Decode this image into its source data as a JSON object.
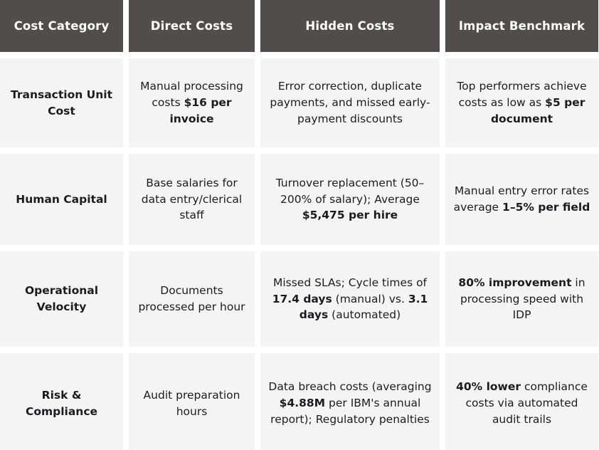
{
  "colors": {
    "header_bg": "#524d4d",
    "header_text": "#ffffff",
    "cell_bg": "#f4f4f4",
    "body_text": "#1c1c1e",
    "page_bg": "#ffffff"
  },
  "table": {
    "columns": [
      "Cost Category",
      "Direct Costs",
      "Hidden Costs",
      "Impact Benchmark"
    ],
    "rows": [
      {
        "category": "Transaction Unit Cost",
        "direct_costs": [
          {
            "t": "Manual processing costs "
          },
          {
            "t": "$16 per invoice",
            "b": true
          }
        ],
        "hidden_costs": [
          {
            "t": "Error correction, duplicate payments, and missed early-payment discounts"
          }
        ],
        "impact_benchmark": [
          {
            "t": "Top performers achieve costs as low as "
          },
          {
            "t": "$5 per document",
            "b": true
          }
        ]
      },
      {
        "category": "Human Capital",
        "direct_costs": [
          {
            "t": "Base salaries for data entry/clerical staff"
          }
        ],
        "hidden_costs": [
          {
            "t": "Turnover replacement (50–200% of salary); Average "
          },
          {
            "t": "$5,475 per hire",
            "b": true
          }
        ],
        "impact_benchmark": [
          {
            "t": "Manual entry error rates average "
          },
          {
            "t": "1–5% per field",
            "b": true
          }
        ]
      },
      {
        "category": "Operational Velocity",
        "direct_costs": [
          {
            "t": "Documents processed per hour"
          }
        ],
        "hidden_costs": [
          {
            "t": "Missed SLAs; Cycle times of "
          },
          {
            "t": "17.4 days",
            "b": true
          },
          {
            "t": " (manual) vs. "
          },
          {
            "t": "3.1 days",
            "b": true
          },
          {
            "t": " (automated)"
          }
        ],
        "impact_benchmark": [
          {
            "t": "80% improvement",
            "b": true
          },
          {
            "t": " in processing speed with IDP"
          }
        ]
      },
      {
        "category": "Risk & Compliance",
        "direct_costs": [
          {
            "t": "Audit preparation hours"
          }
        ],
        "hidden_costs": [
          {
            "t": "Data breach costs (averaging "
          },
          {
            "t": "$4.88M",
            "b": true
          },
          {
            "t": " per IBM's annual report); Regulatory penalties"
          }
        ],
        "impact_benchmark": [
          {
            "t": "40% lower",
            "b": true
          },
          {
            "t": " compliance costs via automated audit trails"
          }
        ]
      }
    ]
  }
}
